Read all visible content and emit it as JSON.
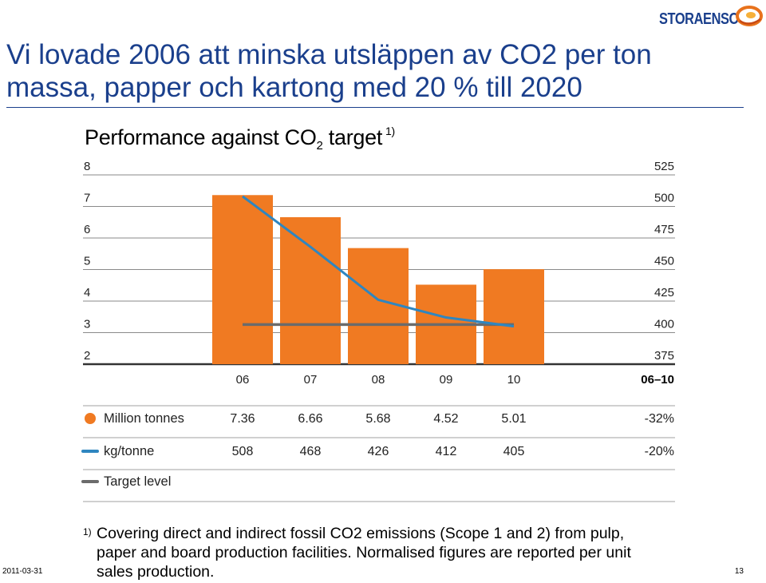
{
  "slide": {
    "title": "Vi lovade 2006 att minska utsläppen av CO2 per ton massa, papper och kartong med 20 % till 2020",
    "logo_text": "STORAENSO",
    "date": "2011-03-31",
    "page_number": "13"
  },
  "chart_heading": {
    "main": "Performance against CO",
    "subscript": "2",
    "rest": " target",
    "note_ref": "1)"
  },
  "footnote": {
    "marker": "1)",
    "text": "Covering direct and indirect fossil CO2 emissions (Scope 1 and 2) from pulp, paper and board production facilities. Normalised figures are reported per unit sales production."
  },
  "colors": {
    "bar": "#f07a22",
    "line": "#2f86c0",
    "target": "#6b6b6b",
    "title": "#1a3f8c",
    "grid": "#8a8a8a"
  },
  "chart_data": {
    "type": "bar",
    "categories": [
      "06",
      "07",
      "08",
      "09",
      "10"
    ],
    "summary_header": "06–10",
    "left_axis": {
      "ylim": [
        2,
        8
      ],
      "ticks": [
        "8",
        "7",
        "6",
        "5",
        "4",
        "3",
        "2"
      ]
    },
    "right_axis": {
      "ylim": [
        375,
        525
      ],
      "ticks": [
        "525",
        "500",
        "475",
        "450",
        "425",
        "400",
        "375"
      ]
    },
    "series": [
      {
        "name": "Million tonnes",
        "kind": "bar",
        "axis": "left",
        "values": [
          7.36,
          6.66,
          5.68,
          4.52,
          5.01
        ],
        "labels": [
          "7.36",
          "6.66",
          "5.68",
          "4.52",
          "5.01"
        ],
        "change": "-32%"
      },
      {
        "name": "kg/tonne",
        "kind": "line",
        "axis": "right",
        "values": [
          508,
          468,
          426,
          412,
          405
        ],
        "labels": [
          "508",
          "468",
          "426",
          "412",
          "405"
        ],
        "change": "-20%"
      },
      {
        "name": "Target level",
        "kind": "hline",
        "axis": "right",
        "value": 406.4
      }
    ]
  }
}
